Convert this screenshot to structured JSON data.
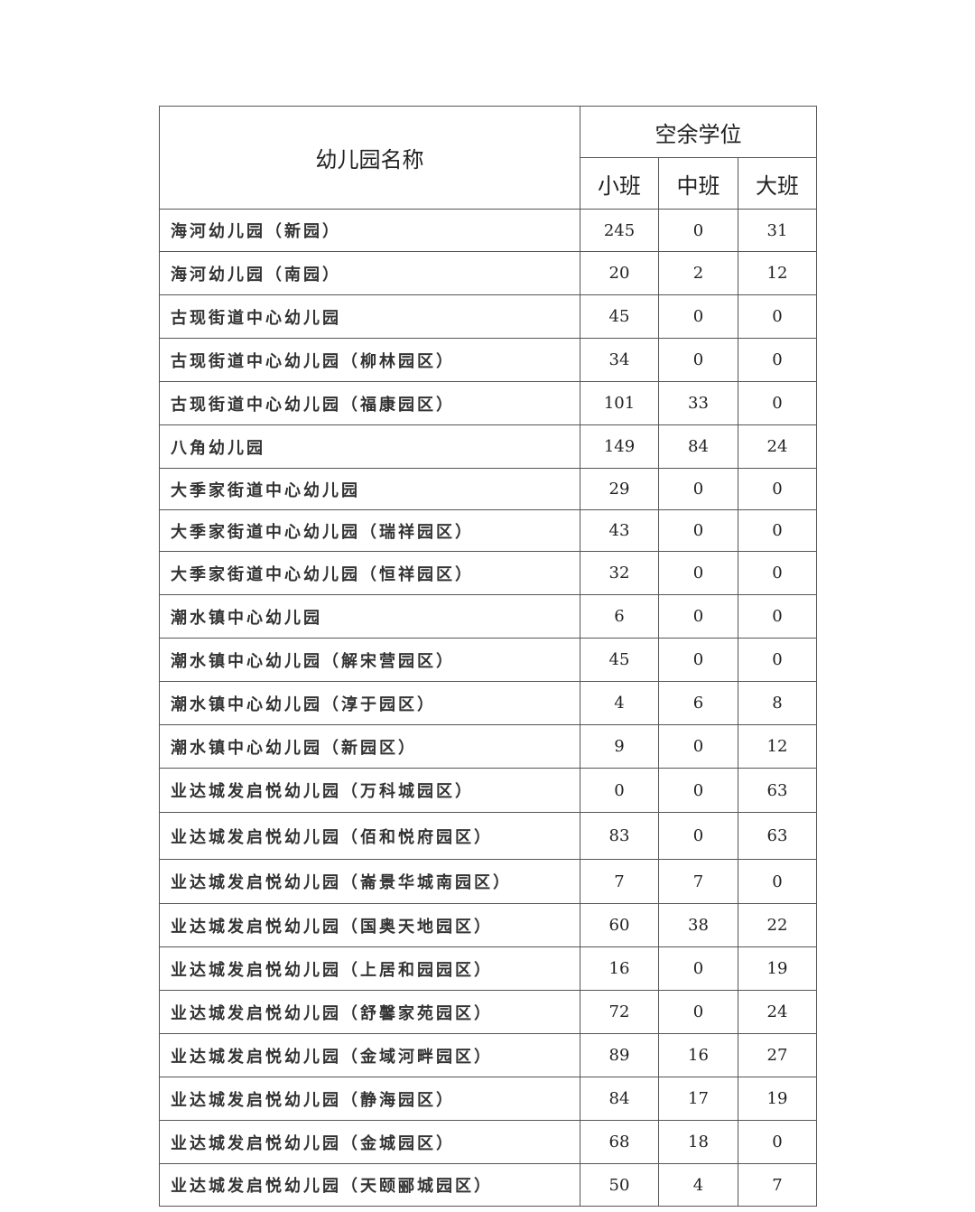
{
  "header": {
    "name_col": "幼儿园名称",
    "group": "空余学位",
    "sub": [
      "小班",
      "中班",
      "大班"
    ]
  },
  "rows": [
    {
      "name": "海河幼儿园（新园）",
      "v": [
        "245",
        "0",
        "31"
      ]
    },
    {
      "name": "海河幼儿园（南园）",
      "v": [
        "20",
        "2",
        "12"
      ]
    },
    {
      "name": "古现街道中心幼儿园",
      "v": [
        "45",
        "0",
        "0"
      ]
    },
    {
      "name": "古现街道中心幼儿园（柳林园区）",
      "v": [
        "34",
        "0",
        "0"
      ]
    },
    {
      "name": "古现街道中心幼儿园（福康园区）",
      "v": [
        "101",
        "33",
        "0"
      ]
    },
    {
      "name": "八角幼儿园",
      "v": [
        "149",
        "84",
        "24"
      ]
    },
    {
      "name": "大季家街道中心幼儿园",
      "v": [
        "29",
        "0",
        "0"
      ]
    },
    {
      "name": "大季家街道中心幼儿园（瑞祥园区）",
      "v": [
        "43",
        "0",
        "0"
      ]
    },
    {
      "name": "大季家街道中心幼儿园（恒祥园区）",
      "v": [
        "32",
        "0",
        "0"
      ]
    },
    {
      "name": "潮水镇中心幼儿园",
      "v": [
        "6",
        "0",
        "0"
      ]
    },
    {
      "name": "潮水镇中心幼儿园（解宋营园区）",
      "v": [
        "45",
        "0",
        "0"
      ]
    },
    {
      "name": "潮水镇中心幼儿园（淳于园区）",
      "v": [
        "4",
        "6",
        "8"
      ]
    },
    {
      "name": "潮水镇中心幼儿园（新园区）",
      "v": [
        "9",
        "0",
        "12"
      ]
    },
    {
      "name": "业达城发启悦幼儿园（万科城园区）",
      "v": [
        "0",
        "0",
        "63"
      ]
    },
    {
      "name": "业达城发启悦幼儿园（佰和悦府园区）",
      "v": [
        "83",
        "0",
        "63"
      ]
    },
    {
      "name": "业达城发启悦幼儿园（崙景华城南园区）",
      "v": [
        "7",
        "7",
        "0"
      ]
    },
    {
      "name": "业达城发启悦幼儿园（国奥天地园区）",
      "v": [
        "60",
        "38",
        "22"
      ]
    },
    {
      "name": "业达城发启悦幼儿园（上居和园园区）",
      "v": [
        "16",
        "0",
        "19"
      ]
    },
    {
      "name": "业达城发启悦幼儿园（舒馨家苑园区）",
      "v": [
        "72",
        "0",
        "24"
      ]
    },
    {
      "name": "业达城发启悦幼儿园（金域河畔园区）",
      "v": [
        "89",
        "16",
        "27"
      ]
    },
    {
      "name": "业达城发启悦幼儿园（静海园区）",
      "v": [
        "84",
        "17",
        "19"
      ]
    },
    {
      "name": "业达城发启悦幼儿园（金城园区）",
      "v": [
        "68",
        "18",
        "0"
      ]
    },
    {
      "name": "业达城发启悦幼儿园（天颐郦城园区）",
      "v": [
        "50",
        "4",
        "7"
      ]
    }
  ]
}
